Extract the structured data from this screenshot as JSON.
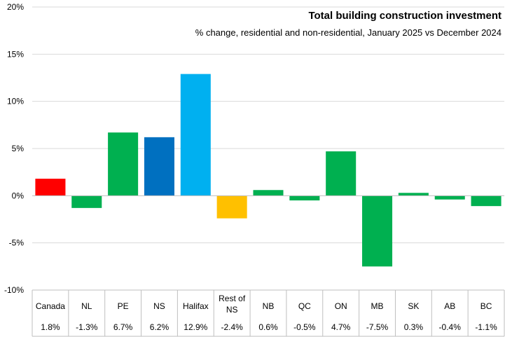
{
  "chart_data": {
    "type": "bar",
    "title": "Total building construction investment",
    "subtitle": "% change, residential and non-residential, January 2025 vs December 2024",
    "xlabel": "",
    "ylabel": "",
    "ylim": [
      -10,
      20
    ],
    "yticks": [
      -10,
      -5,
      0,
      5,
      10,
      15,
      20
    ],
    "ytick_labels": [
      "-10%",
      "-5%",
      "0%",
      "5%",
      "10%",
      "15%",
      "20%"
    ],
    "grid": true,
    "categories": [
      [
        "Canada"
      ],
      [
        "NL"
      ],
      [
        "PE"
      ],
      [
        "NS"
      ],
      [
        "Halifax"
      ],
      [
        "Rest of",
        "NS"
      ],
      [
        "NB"
      ],
      [
        "QC"
      ],
      [
        "ON"
      ],
      [
        "MB"
      ],
      [
        "SK"
      ],
      [
        "AB"
      ],
      [
        "BC"
      ]
    ],
    "values": [
      1.8,
      -1.3,
      6.7,
      6.2,
      12.9,
      -2.4,
      0.6,
      -0.5,
      4.7,
      -7.5,
      0.3,
      -0.4,
      -1.1
    ],
    "value_labels": [
      "1.8%",
      "-1.3%",
      "6.7%",
      "6.2%",
      "12.9%",
      "-2.4%",
      "0.6%",
      "-0.5%",
      "4.7%",
      "-7.5%",
      "0.3%",
      "-0.4%",
      "-1.1%"
    ],
    "colors": [
      "#ff0000",
      "#00b050",
      "#00b050",
      "#0070c0",
      "#00b0f0",
      "#ffc000",
      "#00b050",
      "#00b050",
      "#00b050",
      "#00b050",
      "#00b050",
      "#00b050",
      "#00b050"
    ]
  }
}
